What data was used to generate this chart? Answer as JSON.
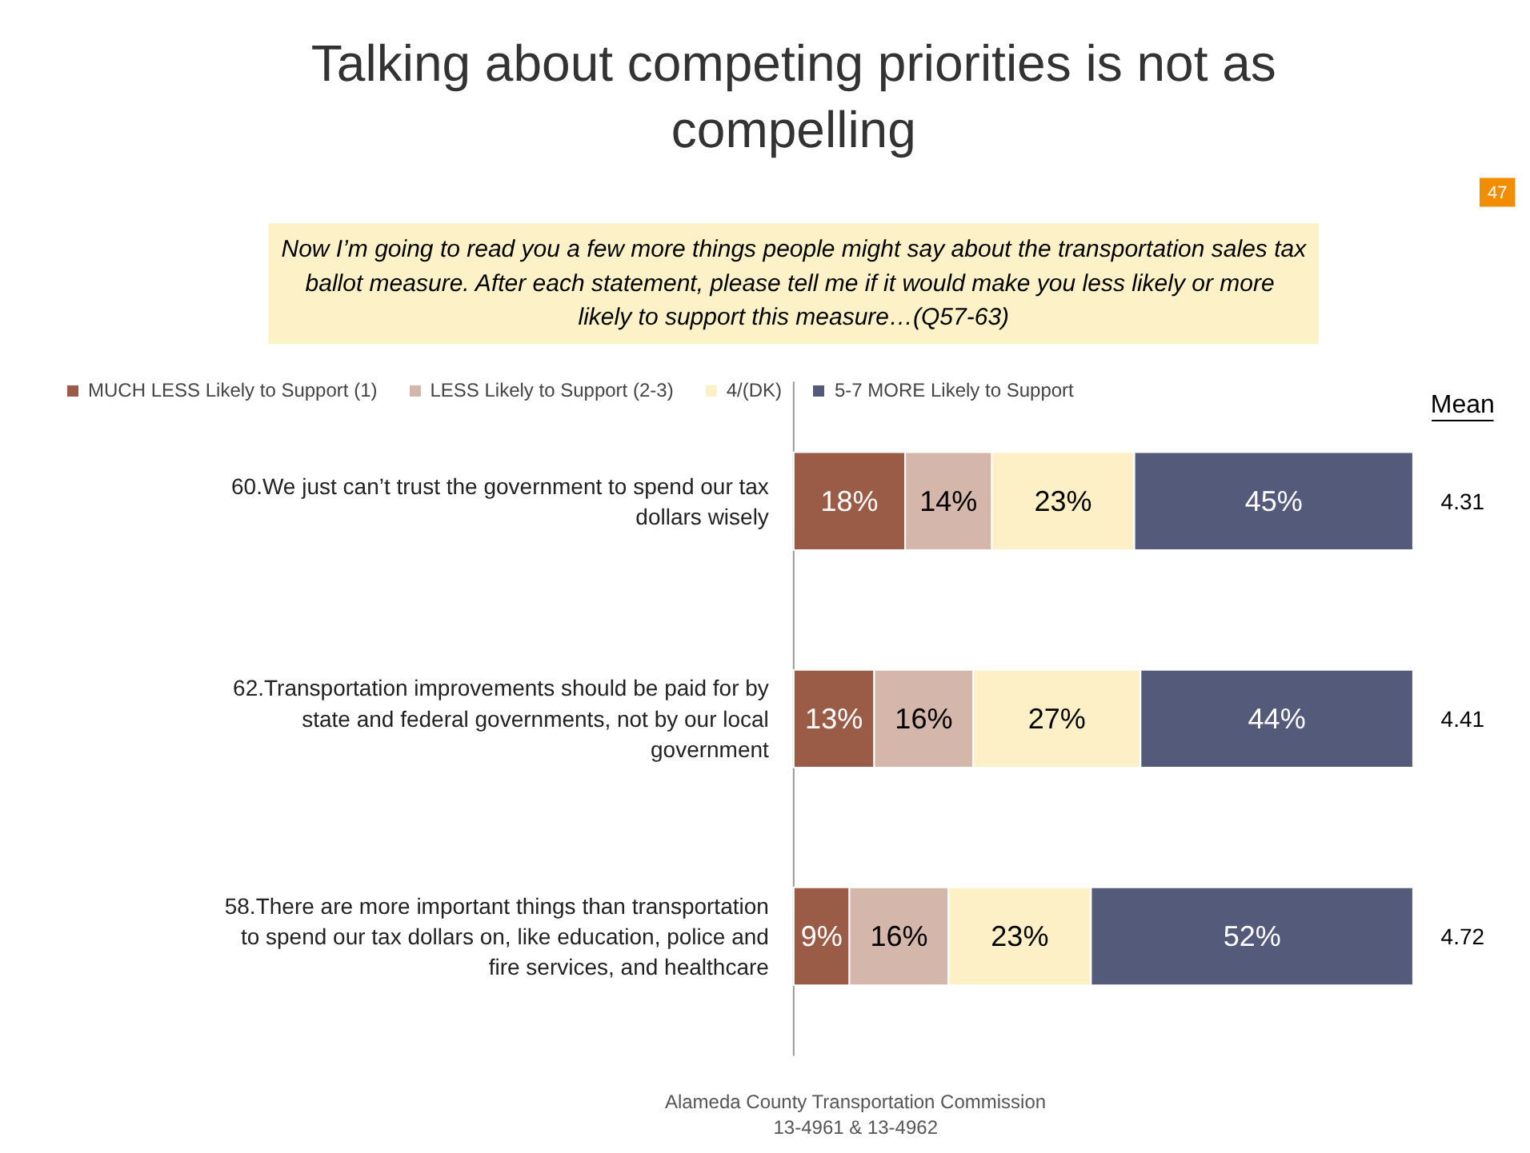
{
  "chart_data": {
    "type": "bar",
    "orientation": "horizontal",
    "stacked": true,
    "title": "Talking about competing priorities is not as compelling",
    "subtitle": "Now I’m going to read you a few more things people might say about the transportation sales tax ballot measure.  After each statement, please tell me if it would make you less likely or more likely to support this measure…(Q57-63)",
    "categories": [
      "60.We just can’t trust the government to spend our tax dollars wisely",
      "62.Transportation improvements should be paid for by state and federal governments, not by our local government",
      "58.There are more important things than transportation to spend our tax dollars on, like education, police and fire services, and healthcare"
    ],
    "series": [
      {
        "name": "MUCH LESS Likely to Support (1)",
        "color": "#9a5b47",
        "values": [
          18,
          13,
          9
        ],
        "value_labels": [
          "18%",
          "13%",
          "9%"
        ]
      },
      {
        "name": "LESS Likely to Support (2-3)",
        "color": "#d5b6ab",
        "values": [
          14,
          16,
          16
        ],
        "value_labels": [
          "14%",
          "16%",
          "16%"
        ]
      },
      {
        "name": "4/(DK)",
        "color": "#fdf0c6",
        "values": [
          23,
          27,
          23
        ],
        "value_labels": [
          "23%",
          "27%",
          "23%"
        ]
      },
      {
        "name": "5-7 MORE Likely to Support",
        "color": "#535a7a",
        "values": [
          45,
          44,
          52
        ],
        "value_labels": [
          "45%",
          "44%",
          "52%"
        ]
      }
    ],
    "legend": "top",
    "annotations": [
      "47",
      "Mean",
      "4.31",
      "4.41",
      "4.72",
      "Alameda County Transportation Commission",
      "13-4961 & 13-4962"
    ]
  }
}
